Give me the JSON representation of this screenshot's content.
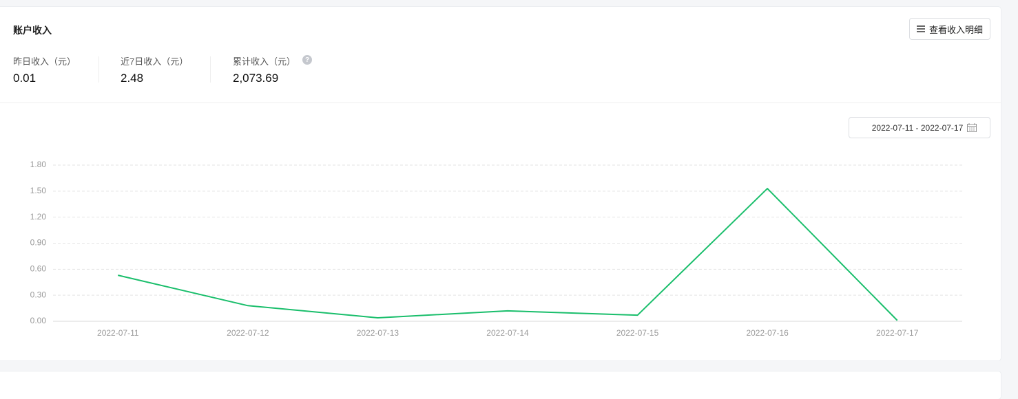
{
  "header": {
    "title": "账户收入",
    "detail_button": "查看收入明细"
  },
  "stats": [
    {
      "label": "昨日收入（元）",
      "value": "0.01"
    },
    {
      "label": "近7日收入（元）",
      "value": "2.48"
    },
    {
      "label": "累计收入（元）",
      "value": "2,073.69"
    }
  ],
  "date_range": "2022-07-11 - 2022-07-17",
  "chart_data": {
    "type": "line",
    "color": "#19be6b",
    "grid": true,
    "categories": [
      "2022-07-11",
      "2022-07-12",
      "2022-07-13",
      "2022-07-14",
      "2022-07-15",
      "2022-07-16",
      "2022-07-17"
    ],
    "values": [
      0.53,
      0.18,
      0.04,
      0.12,
      0.07,
      1.53,
      0.01
    ],
    "ylim": [
      0,
      1.8
    ],
    "yticks": [
      {
        "value": 0,
        "label": "0.00"
      },
      {
        "value": 0.3,
        "label": "0.30"
      },
      {
        "value": 0.6,
        "label": "0.60"
      },
      {
        "value": 0.9,
        "label": "0.90"
      },
      {
        "value": 1.2,
        "label": "1.20"
      },
      {
        "value": 1.5,
        "label": "1.50"
      },
      {
        "value": 1.8,
        "label": "1.80"
      }
    ]
  }
}
